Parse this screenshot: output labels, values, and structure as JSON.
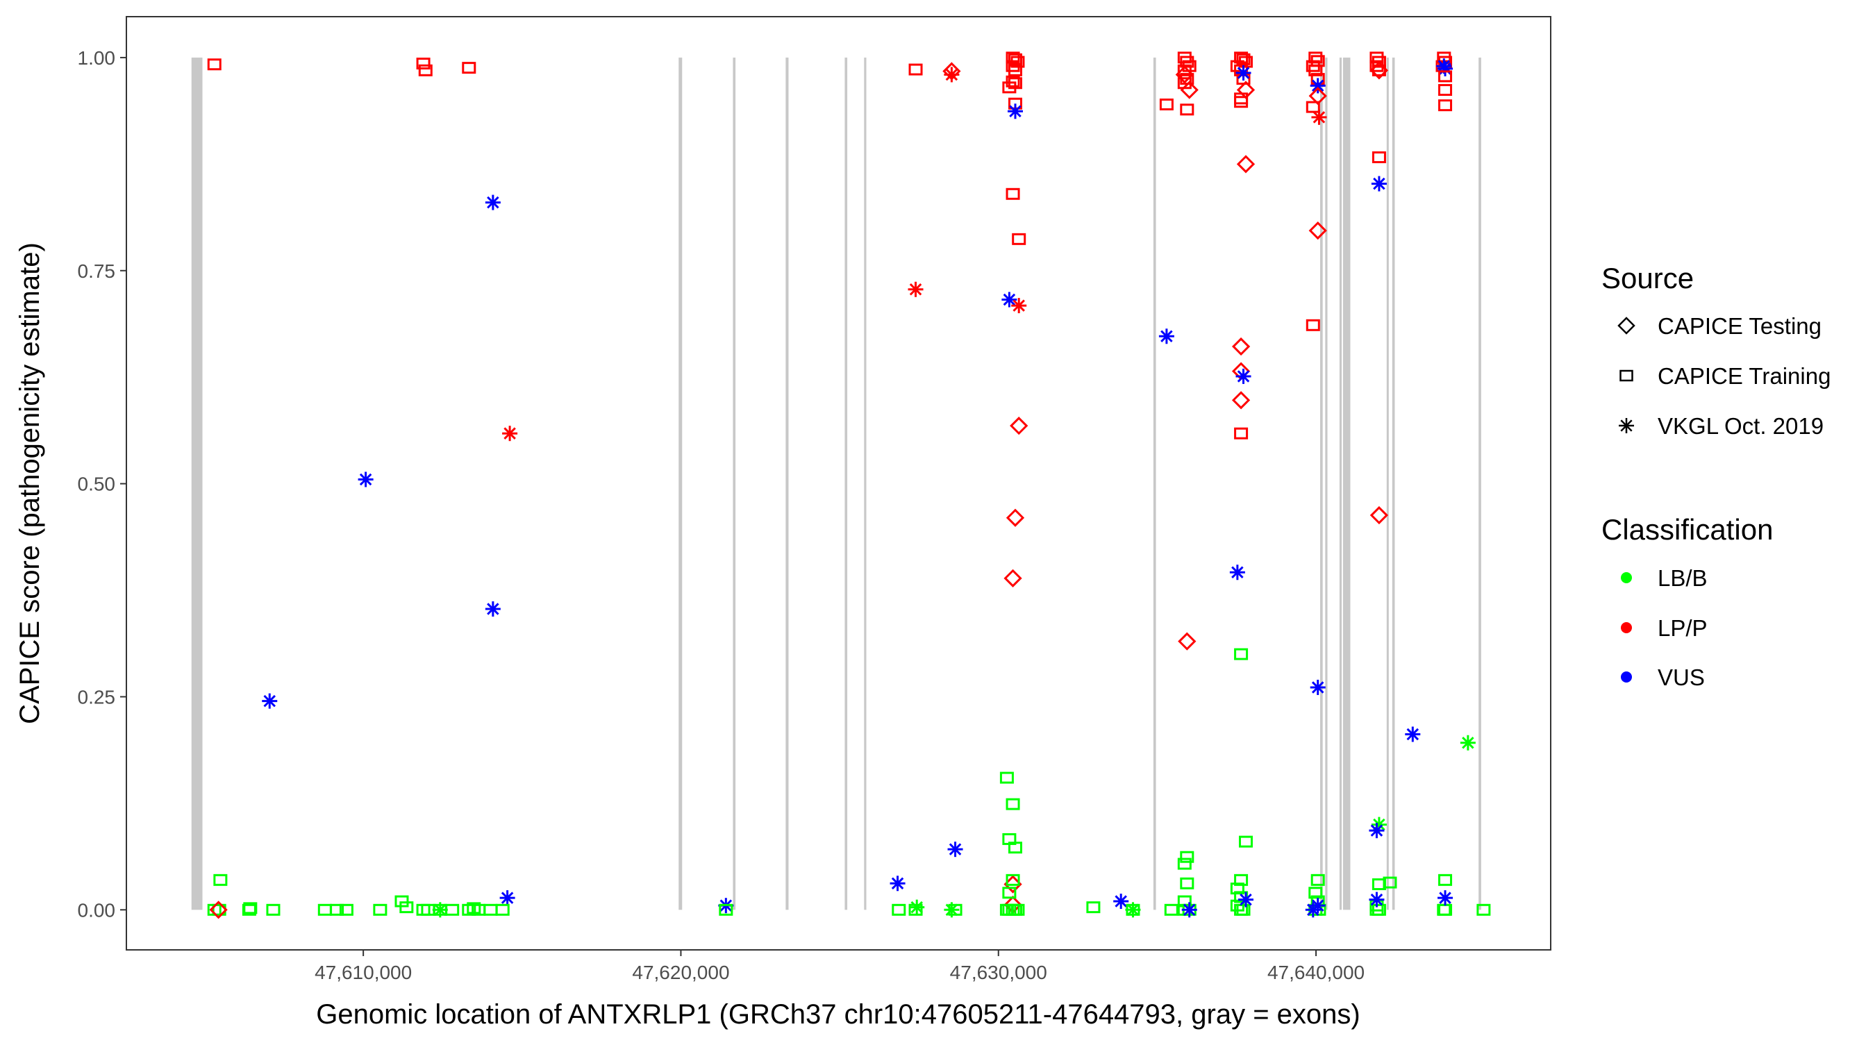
{
  "chart_data": {
    "type": "scatter",
    "title": "",
    "xlabel": "Genomic location of ANTXRLP1 (GRCh37 chr10:47605211-47644793, gray = exons)",
    "ylabel": "CAPICE score (pathogenicity estimate)",
    "xlim": [
      47602540,
      47647390
    ],
    "ylim": [
      -0.047,
      1.048
    ],
    "x_ticks": [
      47610000,
      47620000,
      47630000,
      47640000
    ],
    "x_tick_labels": [
      "47,610,000",
      "47,620,000",
      "47,630,000",
      "47,640,000"
    ],
    "y_ticks": [
      0,
      0.25,
      0.5,
      0.75,
      1.0
    ],
    "y_tick_labels": [
      "0.00",
      "0.25",
      "0.50",
      "0.75",
      "1.00"
    ],
    "grid": false,
    "legend_placement": "right",
    "legend": {
      "source_title": "Source",
      "sources": [
        {
          "key": "T",
          "label": "CAPICE Testing",
          "shape": "diamond"
        },
        {
          "key": "R",
          "label": "CAPICE Training",
          "shape": "square"
        },
        {
          "key": "V",
          "label": "VKGL Oct. 2019",
          "shape": "asterisk"
        }
      ],
      "class_title": "Classification",
      "classes": [
        {
          "key": "B",
          "label": "LB/B",
          "color": "#00ff00"
        },
        {
          "key": "P",
          "label": "LP/P",
          "color": "#ff0000"
        },
        {
          "key": "U",
          "label": "VUS",
          "color": "#0000ff"
        }
      ]
    },
    "exon_color": "#c8c8c8",
    "exons": [
      [
        47604590,
        47604935
      ],
      [
        47619930,
        47620040
      ],
      [
        47621640,
        47621720
      ],
      [
        47623300,
        47623390
      ],
      [
        47625160,
        47625240
      ],
      [
        47625770,
        47625840
      ],
      [
        47634880,
        47634960
      ],
      [
        47640130,
        47640210
      ],
      [
        47640290,
        47640360
      ],
      [
        47640740,
        47640810
      ],
      [
        47640850,
        47641080
      ],
      [
        47642225,
        47642275
      ],
      [
        47642400,
        47642480
      ],
      [
        47645120,
        47645200
      ]
    ],
    "points_fields": [
      "position",
      "score",
      "source",
      "classification"
    ],
    "points": [
      [
        47605312,
        0.992,
        "R",
        "P"
      ],
      [
        47611890,
        0.993,
        "R",
        "P"
      ],
      [
        47611960,
        0.985,
        "R",
        "P"
      ],
      [
        47613327,
        0.988,
        "R",
        "P"
      ],
      [
        47614083,
        0.83,
        "V",
        "U"
      ],
      [
        47610076,
        0.505,
        "V",
        "U"
      ],
      [
        47607050,
        0.245,
        "V",
        "U"
      ],
      [
        47614083,
        0.353,
        "V",
        "U"
      ],
      [
        47614537,
        0.014,
        "V",
        "U"
      ],
      [
        47614613,
        0.559,
        "V",
        "P"
      ],
      [
        47605312,
        0,
        "R",
        "B"
      ],
      [
        47605463,
        0,
        "R",
        "B"
      ],
      [
        47605500,
        0.035,
        "R",
        "B"
      ],
      [
        47606408,
        0,
        "R",
        "B"
      ],
      [
        47606440,
        0.002,
        "R",
        "B"
      ],
      [
        47607164,
        0,
        "R",
        "B"
      ],
      [
        47608790,
        0,
        "R",
        "B"
      ],
      [
        47609168,
        0,
        "R",
        "B"
      ],
      [
        47609470,
        0,
        "R",
        "B"
      ],
      [
        47610530,
        0,
        "R",
        "B"
      ],
      [
        47611210,
        0.01,
        "R",
        "B"
      ],
      [
        47611360,
        0.003,
        "R",
        "B"
      ],
      [
        47611890,
        0,
        "R",
        "B"
      ],
      [
        47612040,
        0,
        "R",
        "B"
      ],
      [
        47612420,
        0,
        "R",
        "B"
      ],
      [
        47612800,
        0,
        "R",
        "B"
      ],
      [
        47613327,
        0,
        "R",
        "B"
      ],
      [
        47613480,
        0.002,
        "R",
        "B"
      ],
      [
        47613630,
        0,
        "R",
        "B"
      ],
      [
        47614008,
        0,
        "R",
        "B"
      ],
      [
        47614386,
        0,
        "R",
        "B"
      ],
      [
        47605440,
        0,
        "T",
        "P"
      ],
      [
        47612420,
        0,
        "V",
        "B"
      ],
      [
        47621419,
        0.005,
        "V",
        "U"
      ],
      [
        47621419,
        0,
        "R",
        "B"
      ],
      [
        47626825,
        0.031,
        "V",
        "U"
      ],
      [
        47626863,
        0,
        "R",
        "B"
      ],
      [
        47627393,
        0,
        "R",
        "B"
      ],
      [
        47627430,
        0.003,
        "V",
        "B"
      ],
      [
        47627393,
        0.986,
        "R",
        "P"
      ],
      [
        47628527,
        0.984,
        "T",
        "P"
      ],
      [
        47628527,
        0.98,
        "V",
        "P"
      ],
      [
        47627393,
        0.728,
        "V",
        "P"
      ],
      [
        47628640,
        0.071,
        "V",
        "U"
      ],
      [
        47628527,
        0,
        "V",
        "B"
      ],
      [
        47628640,
        0,
        "R",
        "B"
      ],
      [
        47630455,
        1.0,
        "R",
        "P"
      ],
      [
        47630530,
        0.998,
        "R",
        "P"
      ],
      [
        47630606,
        0.995,
        "R",
        "P"
      ],
      [
        47630455,
        0.99,
        "R",
        "P"
      ],
      [
        47630530,
        0.985,
        "R",
        "P"
      ],
      [
        47630342,
        0.965,
        "R",
        "P"
      ],
      [
        47630530,
        0.97,
        "R",
        "P"
      ],
      [
        47630455,
        0.972,
        "R",
        "P"
      ],
      [
        47630530,
        0.946,
        "R",
        "P"
      ],
      [
        47630455,
        0.84,
        "R",
        "P"
      ],
      [
        47630644,
        0.787,
        "R",
        "P"
      ],
      [
        47630530,
        0.937,
        "V",
        "U"
      ],
      [
        47630342,
        0.716,
        "V",
        "U"
      ],
      [
        47630644,
        0.709,
        "V",
        "P"
      ],
      [
        47630644,
        0.568,
        "T",
        "P"
      ],
      [
        47630530,
        0.46,
        "T",
        "P"
      ],
      [
        47630455,
        0.389,
        "T",
        "P"
      ],
      [
        47630455,
        0.03,
        "T",
        "P"
      ],
      [
        47630455,
        0.006,
        "T",
        "P"
      ],
      [
        47630266,
        0.155,
        "R",
        "B"
      ],
      [
        47630455,
        0.124,
        "R",
        "B"
      ],
      [
        47630342,
        0.083,
        "R",
        "B"
      ],
      [
        47630530,
        0.073,
        "R",
        "B"
      ],
      [
        47630455,
        0.035,
        "R",
        "B"
      ],
      [
        47630342,
        0.02,
        "R",
        "B"
      ],
      [
        47630266,
        0,
        "R",
        "B"
      ],
      [
        47630342,
        0,
        "R",
        "B"
      ],
      [
        47630455,
        0,
        "R",
        "B"
      ],
      [
        47630530,
        0,
        "R",
        "B"
      ],
      [
        47630606,
        0,
        "R",
        "B"
      ],
      [
        47632988,
        0.003,
        "R",
        "B"
      ],
      [
        47633858,
        0.01,
        "V",
        "U"
      ],
      [
        47634236,
        0,
        "V",
        "B"
      ],
      [
        47634236,
        0,
        "R",
        "B"
      ],
      [
        47635295,
        0.673,
        "V",
        "U"
      ],
      [
        47635295,
        0.945,
        "R",
        "P"
      ],
      [
        47635938,
        0.315,
        "T",
        "P"
      ],
      [
        47635862,
        1.0,
        "R",
        "P"
      ],
      [
        47635938,
        0.995,
        "R",
        "P"
      ],
      [
        47636013,
        0.99,
        "R",
        "P"
      ],
      [
        47635862,
        0.985,
        "R",
        "P"
      ],
      [
        47635938,
        0.975,
        "R",
        "P"
      ],
      [
        47635862,
        0.97,
        "R",
        "P"
      ],
      [
        47636013,
        0.962,
        "T",
        "P"
      ],
      [
        47635862,
        0.98,
        "T",
        "P"
      ],
      [
        47635938,
        0.939,
        "R",
        "P"
      ],
      [
        47635938,
        0.062,
        "R",
        "B"
      ],
      [
        47635862,
        0.054,
        "R",
        "B"
      ],
      [
        47635938,
        0.031,
        "R",
        "B"
      ],
      [
        47635862,
        0.01,
        "R",
        "B"
      ],
      [
        47635446,
        0,
        "R",
        "B"
      ],
      [
        47635862,
        0,
        "R",
        "B"
      ],
      [
        47636013,
        0,
        "R",
        "B"
      ],
      [
        47636013,
        0,
        "V",
        "U"
      ],
      [
        47637639,
        1.0,
        "R",
        "P"
      ],
      [
        47637714,
        0.998,
        "R",
        "P"
      ],
      [
        47637790,
        0.995,
        "R",
        "P"
      ],
      [
        47637525,
        0.99,
        "R",
        "P"
      ],
      [
        47637639,
        0.985,
        "R",
        "P"
      ],
      [
        47637714,
        0.975,
        "R",
        "P"
      ],
      [
        47637714,
        0.982,
        "V",
        "U"
      ],
      [
        47637790,
        0.962,
        "T",
        "P"
      ],
      [
        47637639,
        0.948,
        "R",
        "P"
      ],
      [
        47637639,
        0.952,
        "R",
        "P"
      ],
      [
        47637790,
        0.875,
        "T",
        "P"
      ],
      [
        47637639,
        0.661,
        "T",
        "P"
      ],
      [
        47637639,
        0.632,
        "T",
        "P"
      ],
      [
        47637639,
        0.598,
        "T",
        "P"
      ],
      [
        47637714,
        0.626,
        "V",
        "U"
      ],
      [
        47637639,
        0.559,
        "R",
        "P"
      ],
      [
        47637525,
        0.396,
        "V",
        "U"
      ],
      [
        47637639,
        0.3,
        "R",
        "B"
      ],
      [
        47637790,
        0.08,
        "R",
        "B"
      ],
      [
        47637639,
        0.035,
        "R",
        "B"
      ],
      [
        47637525,
        0.025,
        "R",
        "B"
      ],
      [
        47637639,
        0.015,
        "R",
        "B"
      ],
      [
        47637525,
        0.005,
        "R",
        "B"
      ],
      [
        47637714,
        0,
        "R",
        "B"
      ],
      [
        47637639,
        0,
        "R",
        "B"
      ],
      [
        47637790,
        0.012,
        "V",
        "U"
      ],
      [
        47639983,
        1.0,
        "R",
        "P"
      ],
      [
        47640058,
        0.996,
        "R",
        "P"
      ],
      [
        47639907,
        0.99,
        "R",
        "P"
      ],
      [
        47639983,
        0.985,
        "R",
        "P"
      ],
      [
        47640058,
        0.975,
        "R",
        "P"
      ],
      [
        47640058,
        0.967,
        "V",
        "U"
      ],
      [
        47640058,
        0.955,
        "T",
        "P"
      ],
      [
        47639907,
        0.942,
        "R",
        "P"
      ],
      [
        47640096,
        0.93,
        "V",
        "P"
      ],
      [
        47640058,
        0.797,
        "T",
        "P"
      ],
      [
        47639907,
        0.686,
        "R",
        "P"
      ],
      [
        47640058,
        0.261,
        "V",
        "U"
      ],
      [
        47640058,
        0.035,
        "R",
        "B"
      ],
      [
        47639983,
        0.02,
        "R",
        "B"
      ],
      [
        47640058,
        0.01,
        "R",
        "B"
      ],
      [
        47639983,
        0,
        "R",
        "B"
      ],
      [
        47640096,
        0,
        "R",
        "B"
      ],
      [
        47639907,
        0,
        "V",
        "U"
      ],
      [
        47640058,
        0.005,
        "V",
        "U"
      ],
      [
        47641911,
        1.0,
        "R",
        "P"
      ],
      [
        47641987,
        0.995,
        "R",
        "P"
      ],
      [
        47641911,
        0.99,
        "R",
        "P"
      ],
      [
        47641987,
        0.985,
        "R",
        "P"
      ],
      [
        47641987,
        0.985,
        "T",
        "P"
      ],
      [
        47641987,
        0.883,
        "R",
        "P"
      ],
      [
        47641987,
        0.852,
        "V",
        "U"
      ],
      [
        47641987,
        0.463,
        "T",
        "P"
      ],
      [
        47641987,
        0.1,
        "V",
        "B"
      ],
      [
        47641911,
        0.093,
        "V",
        "U"
      ],
      [
        47641987,
        0.03,
        "R",
        "B"
      ],
      [
        47642327,
        0.032,
        "R",
        "B"
      ],
      [
        47641911,
        0,
        "R",
        "B"
      ],
      [
        47641987,
        0,
        "R",
        "B"
      ],
      [
        47641911,
        0.005,
        "R",
        "B"
      ],
      [
        47641911,
        0.012,
        "V",
        "U"
      ],
      [
        47643045,
        0.206,
        "V",
        "U"
      ],
      [
        47644785,
        0.196,
        "V",
        "B"
      ],
      [
        47645277,
        0,
        "R",
        "B"
      ],
      [
        47644029,
        1.0,
        "R",
        "P"
      ],
      [
        47644067,
        0.995,
        "R",
        "P"
      ],
      [
        47643990,
        0.99,
        "R",
        "P"
      ],
      [
        47644067,
        0.987,
        "V",
        "U"
      ],
      [
        47644029,
        0.99,
        "V",
        "U"
      ],
      [
        47644067,
        0.978,
        "R",
        "P"
      ],
      [
        47644067,
        0.962,
        "R",
        "P"
      ],
      [
        47644067,
        0.944,
        "R",
        "P"
      ],
      [
        47644067,
        0.035,
        "R",
        "B"
      ],
      [
        47644029,
        0,
        "R",
        "B"
      ],
      [
        47644067,
        0,
        "R",
        "B"
      ],
      [
        47644067,
        0.014,
        "V",
        "U"
      ]
    ]
  }
}
